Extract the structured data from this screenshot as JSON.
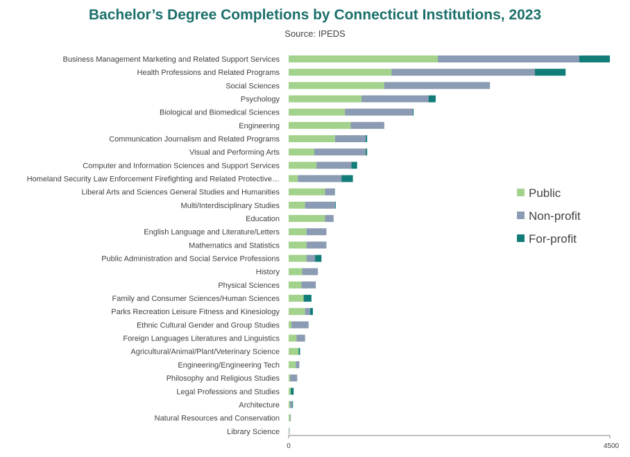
{
  "title": "Bachelor’s Degree Completions by Connecticut Institutions, 2023",
  "subtitle": "Source: IPEDS",
  "colors": {
    "Public": "#a3d28c",
    "Non-profit": "#8a9bb3",
    "For-profit": "#127d78"
  },
  "chart_data": {
    "type": "bar",
    "orientation": "horizontal",
    "stacked": true,
    "categories": [
      "Business Management Marketing and Related Support Services",
      "Health Professions and Related Programs",
      "Social Sciences",
      "Psychology",
      "Biological and Biomedical Sciences",
      "Engineering",
      "Communication Journalism and Related Programs",
      "Visual and Performing Arts",
      "Computer and Information Sciences and Support Services",
      "Homeland Security Law Enforcement Firefighting and Related Protective…",
      "Liberal Arts and Sciences General Studies and Humanities",
      "Multi/Interdisciplinary Studies",
      "Education",
      "English Language and Literature/Letters",
      "Mathematics and Statistics",
      "Public Administration and Social Service Professions",
      "History",
      "Physical Sciences",
      "Family and Consumer Sciences/Human Sciences",
      "Parks Recreation Leisure Fitness and Kinesiology",
      "Ethnic Cultural Gender and Group Studies",
      "Foreign Languages Literatures and Linguistics",
      "Agricultural/Animal/Plant/Veterinary Science",
      "Engineering/Engineering Tech",
      "Philosophy and Religious Studies",
      "Legal Professions and Studies",
      "Architecture",
      "Natural Resources and Conservation",
      "Library Science"
    ],
    "series": [
      {
        "name": "Public",
        "values": [
          2090,
          1440,
          1340,
          1020,
          790,
          870,
          650,
          360,
          390,
          130,
          510,
          230,
          510,
          250,
          250,
          250,
          190,
          180,
          210,
          230,
          40,
          110,
          140,
          100,
          20,
          30,
          20,
          20,
          5
        ]
      },
      {
        "name": "Non-profit",
        "values": [
          1980,
          2010,
          1480,
          940,
          950,
          470,
          430,
          720,
          490,
          610,
          140,
          420,
          120,
          280,
          280,
          120,
          220,
          200,
          0,
          70,
          240,
          120,
          0,
          50,
          100,
          0,
          30,
          10,
          5
        ]
      },
      {
        "name": "For-profit",
        "values": [
          430,
          430,
          0,
          100,
          10,
          0,
          20,
          20,
          80,
          160,
          0,
          10,
          0,
          0,
          0,
          90,
          0,
          0,
          110,
          40,
          0,
          0,
          20,
          0,
          0,
          40,
          10,
          0,
          0
        ]
      }
    ],
    "xlim": [
      0,
      4500
    ],
    "x_ticks": [
      0,
      4500
    ],
    "legend": [
      "Public",
      "Non-profit",
      "For-profit"
    ],
    "legend_position": "right",
    "grid": false
  }
}
